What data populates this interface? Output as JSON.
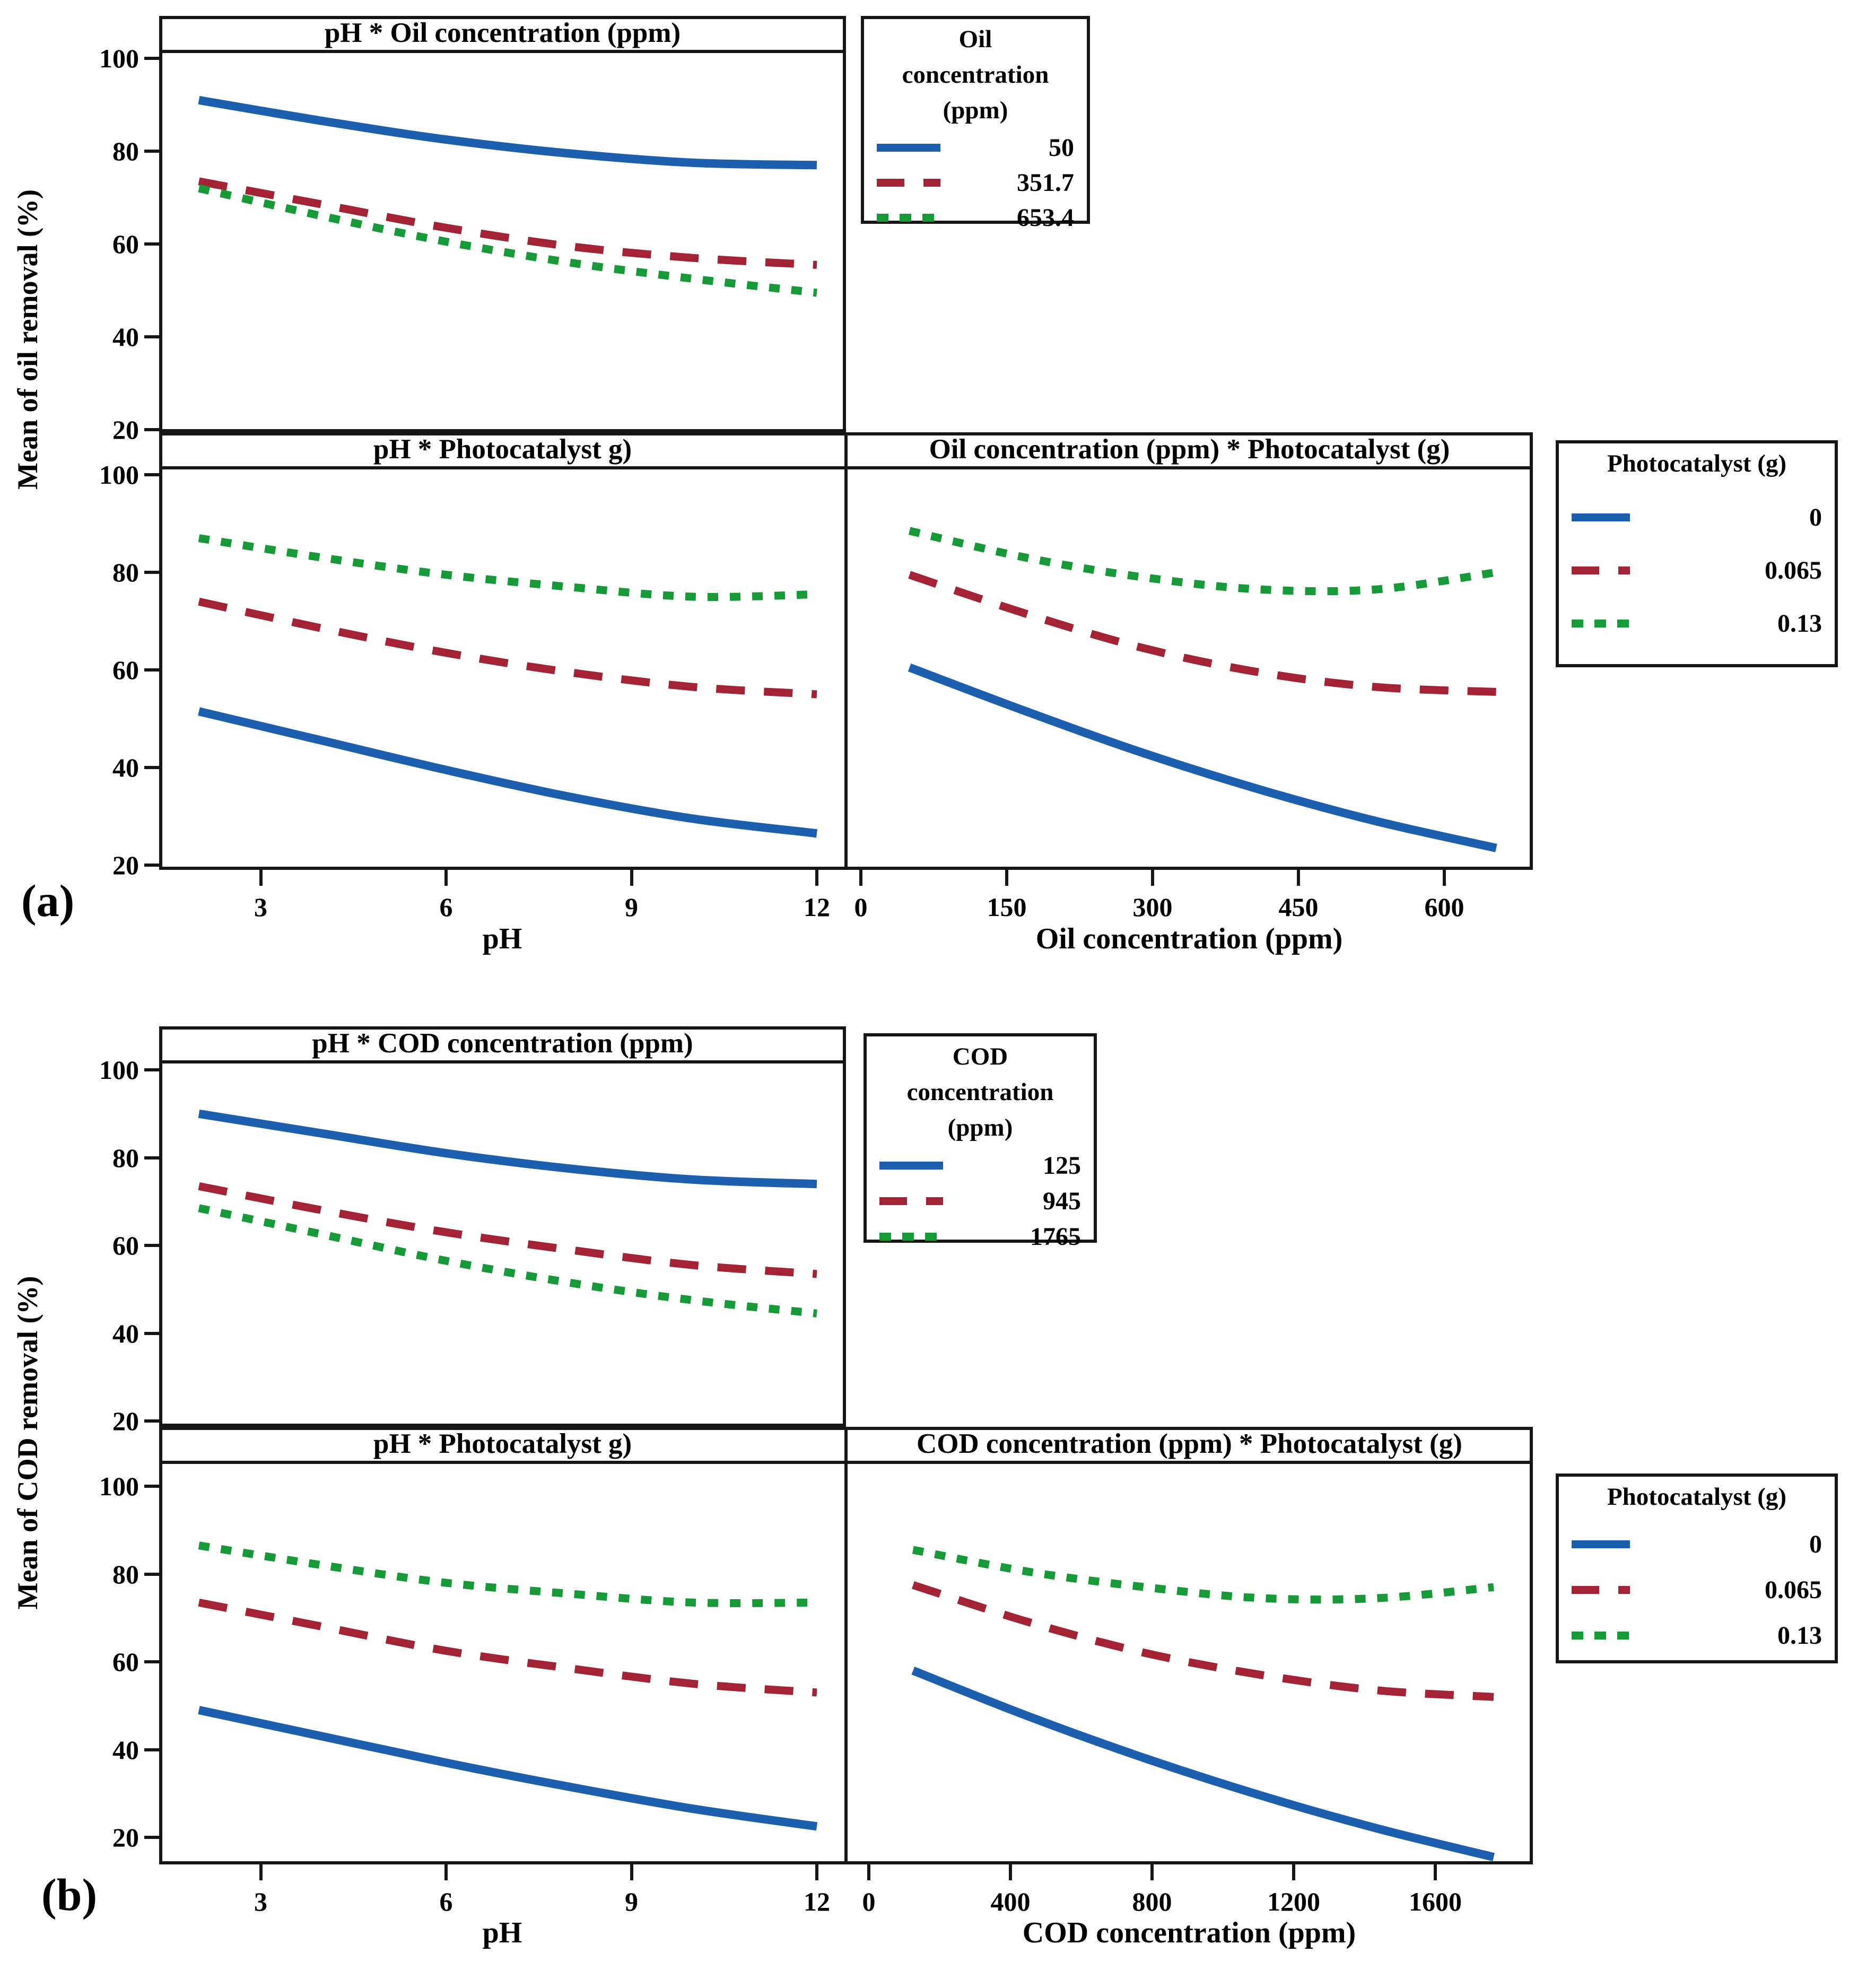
{
  "colors": {
    "blue": "#1D5FAF",
    "red": "#A32233",
    "green": "#169A38",
    "frame": "#161616"
  },
  "panel_labels": {
    "a": "(a)",
    "b": "(b)"
  },
  "ylabels": {
    "a": "Mean of oil removal (%)",
    "b": "Mean of COD removal (%)"
  },
  "xlabels": {
    "a_left": "pH",
    "a_right": "Oil concentration (ppm)",
    "b_left": "pH",
    "b_right": "COD concentration (ppm)"
  },
  "legends": [
    {
      "id": "legend-a1",
      "title_lines": [
        "Oil",
        "concentration",
        "(ppm)"
      ],
      "items": [
        {
          "label": "50",
          "style": "solid",
          "color": "#1D5FAF"
        },
        {
          "label": "351.7",
          "style": "dashed",
          "color": "#A32233"
        },
        {
          "label": "653.4",
          "style": "dotted",
          "color": "#169A38"
        }
      ]
    },
    {
      "id": "legend-a2",
      "title_lines": [
        "Photocatalyst (g)"
      ],
      "items": [
        {
          "label": "0",
          "style": "solid",
          "color": "#1D5FAF"
        },
        {
          "label": "0.065",
          "style": "dashed",
          "color": "#A32233"
        },
        {
          "label": "0.13",
          "style": "dotted",
          "color": "#169A38"
        }
      ]
    },
    {
      "id": "legend-b1",
      "title_lines": [
        "COD",
        "concentration",
        "(ppm)"
      ],
      "items": [
        {
          "label": "125",
          "style": "solid",
          "color": "#1D5FAF"
        },
        {
          "label": "945",
          "style": "dashed",
          "color": "#A32233"
        },
        {
          "label": "1765",
          "style": "dotted",
          "color": "#169A38"
        }
      ]
    },
    {
      "id": "legend-b2",
      "title_lines": [
        "Photocatalyst (g)"
      ],
      "items": [
        {
          "label": "0",
          "style": "solid",
          "color": "#1D5FAF"
        },
        {
          "label": "0.065",
          "style": "dashed",
          "color": "#A32233"
        },
        {
          "label": "0.13",
          "style": "dotted",
          "color": "#169A38"
        }
      ]
    }
  ],
  "chart_data": [
    {
      "id": "a1",
      "type": "line",
      "title": "pH * Oil concentration (ppm)",
      "xlabel": "pH",
      "ylabel": "Mean of oil removal (%)",
      "xlim": [
        2,
        12
      ],
      "ylim": [
        20,
        100
      ],
      "xticks": [
        3,
        6,
        9,
        12
      ],
      "yticks": [
        100,
        80,
        60,
        40,
        20
      ],
      "legend_title": "Oil concentration (ppm)",
      "series": [
        {
          "name": "50",
          "color": "#1D5FAF",
          "dash": "solid",
          "x": [
            2,
            4,
            6,
            8,
            10,
            12
          ],
          "y": [
            91,
            86.5,
            82.5,
            79.5,
            77.5,
            77
          ]
        },
        {
          "name": "351.7",
          "color": "#A32233",
          "dash": "dashed",
          "x": [
            2,
            4,
            6,
            8,
            10,
            12
          ],
          "y": [
            73.5,
            68.5,
            63.5,
            59.5,
            57,
            55.5
          ]
        },
        {
          "name": "653.4",
          "color": "#169A38",
          "dash": "dotted",
          "x": [
            2,
            4,
            6,
            8,
            10,
            12
          ],
          "y": [
            72,
            66,
            60.5,
            56,
            52.5,
            49.5
          ]
        }
      ]
    },
    {
      "id": "a2l",
      "type": "line",
      "title": "pH * Photocatalyst g)",
      "xlabel": "pH",
      "ylabel": "Mean of oil removal (%)",
      "xlim": [
        2,
        12
      ],
      "ylim": [
        20,
        100
      ],
      "xticks": [
        3,
        6,
        9,
        12
      ],
      "yticks": [
        100,
        80,
        60,
        40,
        20
      ],
      "legend_title": "Photocatalyst (g)",
      "series": [
        {
          "name": "0",
          "color": "#1D5FAF",
          "dash": "solid",
          "x": [
            2,
            4,
            6,
            8,
            10,
            12
          ],
          "y": [
            51.5,
            45.5,
            39.5,
            34,
            29.5,
            26.5
          ]
        },
        {
          "name": "0.065",
          "color": "#A32233",
          "dash": "dashed",
          "x": [
            2,
            4,
            6,
            8,
            10,
            12
          ],
          "y": [
            74,
            68.5,
            63.5,
            59.5,
            56.5,
            55
          ]
        },
        {
          "name": "0.13",
          "color": "#169A38",
          "dash": "dotted",
          "x": [
            2,
            4,
            6,
            8,
            10,
            12
          ],
          "y": [
            87,
            83,
            79.5,
            77,
            75,
            75.5
          ]
        }
      ]
    },
    {
      "id": "a2r",
      "type": "line",
      "title": "Oil concentration (ppm) * Photocatalyst (g)",
      "xlabel": "Oil concentration (ppm)",
      "ylabel": "Mean of oil removal (%)",
      "xlim": [
        50,
        653.4
      ],
      "ylim": [
        20,
        100
      ],
      "xticks": [
        0,
        150,
        300,
        450,
        600
      ],
      "yticks": [
        100,
        80,
        60,
        40,
        20
      ],
      "legend_title": "Photocatalyst (g)",
      "series": [
        {
          "name": "0",
          "color": "#1D5FAF",
          "dash": "solid",
          "x": [
            50,
            170,
            290,
            410,
            530,
            653.4
          ],
          "y": [
            60.5,
            51.5,
            43,
            35.5,
            29,
            23.5
          ]
        },
        {
          "name": "0.065",
          "color": "#A32233",
          "dash": "dashed",
          "x": [
            50,
            170,
            290,
            410,
            530,
            653.4
          ],
          "y": [
            79.5,
            71.5,
            64.5,
            59.5,
            56.5,
            55.5
          ]
        },
        {
          "name": "0.13",
          "color": "#169A38",
          "dash": "dotted",
          "x": [
            50,
            170,
            290,
            410,
            530,
            653.4
          ],
          "y": [
            88.5,
            83,
            79,
            76.5,
            76.5,
            80
          ]
        }
      ]
    },
    {
      "id": "b1",
      "type": "line",
      "title": "pH * COD concentration (ppm)",
      "xlabel": "pH",
      "ylabel": "Mean of COD removal (%)",
      "xlim": [
        2,
        12
      ],
      "ylim": [
        20,
        100
      ],
      "xticks": [
        3,
        6,
        9,
        12
      ],
      "yticks": [
        100,
        80,
        60,
        40,
        20
      ],
      "legend_title": "COD concentration (ppm)",
      "series": [
        {
          "name": "125",
          "color": "#1D5FAF",
          "dash": "solid",
          "x": [
            2,
            4,
            6,
            8,
            10,
            12
          ],
          "y": [
            90,
            85.5,
            81,
            77.5,
            75,
            74
          ]
        },
        {
          "name": "945",
          "color": "#A32233",
          "dash": "dashed",
          "x": [
            2,
            4,
            6,
            8,
            10,
            12
          ],
          "y": [
            73.5,
            68,
            63,
            59,
            55.5,
            53.5
          ]
        },
        {
          "name": "1765",
          "color": "#169A38",
          "dash": "dotted",
          "x": [
            2,
            4,
            6,
            8,
            10,
            12
          ],
          "y": [
            68.5,
            62.5,
            56.5,
            51.5,
            47.5,
            44.5
          ]
        }
      ]
    },
    {
      "id": "b2l",
      "type": "line",
      "title": "pH * Photocatalyst g)",
      "xlabel": "pH",
      "ylabel": "Mean of COD removal (%)",
      "xlim": [
        2,
        12
      ],
      "ylim": [
        20,
        100
      ],
      "xticks": [
        3,
        6,
        9,
        12
      ],
      "yticks": [
        100,
        80,
        60,
        40,
        20
      ],
      "legend_title": "Photocatalyst (g)",
      "series": [
        {
          "name": "0",
          "color": "#1D5FAF",
          "dash": "solid",
          "x": [
            2,
            4,
            6,
            8,
            10,
            12
          ],
          "y": [
            49,
            43,
            37,
            31.5,
            26.5,
            22.5
          ]
        },
        {
          "name": "0.065",
          "color": "#A32233",
          "dash": "dashed",
          "x": [
            2,
            4,
            6,
            8,
            10,
            12
          ],
          "y": [
            73.5,
            68,
            62.5,
            58.5,
            55,
            53
          ]
        },
        {
          "name": "0.13",
          "color": "#169A38",
          "dash": "dotted",
          "x": [
            2,
            4,
            6,
            8,
            10,
            12
          ],
          "y": [
            86.5,
            82,
            78,
            75.5,
            73.5,
            73.5
          ]
        }
      ]
    },
    {
      "id": "b2r",
      "type": "line",
      "title": "COD concentration (ppm) * Photocatalyst (g)",
      "xlabel": "COD concentration (ppm)",
      "ylabel": "Mean of COD removal (%)",
      "xlim": [
        125,
        1765
      ],
      "ylim": [
        20,
        100
      ],
      "xticks": [
        0,
        400,
        800,
        1200,
        1600
      ],
      "yticks": [
        100,
        80,
        60,
        40,
        20
      ],
      "legend_title": "Photocatalyst (g)",
      "series": [
        {
          "name": "0",
          "color": "#1D5FAF",
          "dash": "solid",
          "x": [
            125,
            453,
            781,
            1109,
            1437,
            1765
          ],
          "y": [
            58,
            47.5,
            38,
            29.5,
            22,
            15.5
          ]
        },
        {
          "name": "0.065",
          "color": "#A32233",
          "dash": "dashed",
          "x": [
            125,
            453,
            781,
            1109,
            1437,
            1765
          ],
          "y": [
            77.5,
            69,
            62,
            57,
            53.5,
            52
          ]
        },
        {
          "name": "0.13",
          "color": "#169A38",
          "dash": "dotted",
          "x": [
            125,
            453,
            781,
            1109,
            1437,
            1765
          ],
          "y": [
            85.5,
            80.5,
            77,
            74.5,
            74.5,
            77
          ]
        }
      ]
    }
  ]
}
